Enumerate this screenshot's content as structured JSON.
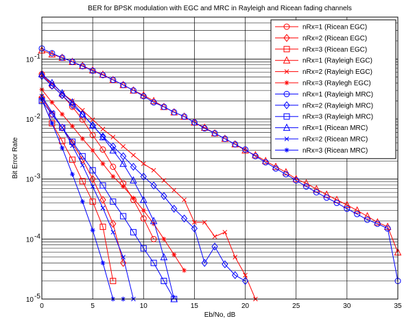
{
  "chart_data": {
    "type": "line",
    "title": "BER for BPSK modulation with EGC and MRC in Rayleigh and Ricean fading channels",
    "xlabel": "Eb/No, dB",
    "ylabel": "Bit Error Rate",
    "xlim": [
      0,
      35
    ],
    "ylim": [
      1e-05,
      0.5
    ],
    "yscale": "log",
    "grid": true,
    "legend_position": "top-right",
    "x_ticks": [
      "0",
      "5",
      "10",
      "15",
      "20",
      "25",
      "30",
      "35"
    ],
    "y_ticks": [
      {
        "value": 1e-05,
        "base": "10",
        "exp": "-5"
      },
      {
        "value": 0.0001,
        "base": "10",
        "exp": "-4"
      },
      {
        "value": 0.001,
        "base": "10",
        "exp": "-3"
      },
      {
        "value": 0.01,
        "base": "10",
        "exp": "-2"
      },
      {
        "value": 0.1,
        "base": "10",
        "exp": "-1"
      }
    ],
    "series": [
      {
        "name": "nRx=1 (Ricean EGC)",
        "color": "#ff0000",
        "marker": "circle",
        "x": [
          0,
          1,
          2,
          3,
          4,
          5,
          6,
          7,
          8,
          9,
          10,
          11
        ],
        "y": [
          0.056,
          0.036,
          0.025,
          0.016,
          0.0098,
          0.0054,
          0.0031,
          0.0016,
          0.00085,
          0.00045,
          0.00022,
          0.0001
        ]
      },
      {
        "name": "nRx=2 (Ricean EGC)",
        "color": "#ff0000",
        "marker": "diamond",
        "x": [
          0,
          1,
          2,
          3,
          4,
          5,
          6,
          7,
          8
        ],
        "y": [
          0.023,
          0.012,
          0.0072,
          0.004,
          0.0021,
          0.001,
          0.00045,
          0.00018,
          4e-05
        ]
      },
      {
        "name": "nRx=3 (Ricean EGC)",
        "color": "#ff0000",
        "marker": "square",
        "x": [
          0,
          1,
          2,
          3,
          4,
          5,
          6,
          7
        ],
        "y": [
          0.021,
          0.0085,
          0.0043,
          0.0021,
          0.00092,
          0.00042,
          0.00016,
          2e-05
        ]
      },
      {
        "name": "nRx=1 (Rayleigh EGC)",
        "color": "#ff0000",
        "marker": "triangle",
        "x": [
          0,
          1,
          2,
          3,
          4,
          5,
          6,
          7,
          8,
          9,
          10,
          11,
          12,
          13,
          14,
          15,
          16,
          17,
          18,
          19,
          20,
          21,
          22,
          23,
          24,
          25,
          26,
          27,
          28,
          29,
          30,
          31,
          32,
          33,
          34,
          35
        ],
        "y": [
          0.14,
          0.12,
          0.105,
          0.09,
          0.077,
          0.065,
          0.055,
          0.045,
          0.037,
          0.03,
          0.025,
          0.02,
          0.016,
          0.013,
          0.011,
          0.0088,
          0.0072,
          0.0058,
          0.0047,
          0.0038,
          0.003,
          0.0025,
          0.002,
          0.0016,
          0.0013,
          0.001,
          0.00085,
          0.00068,
          0.00055,
          0.00045,
          0.00037,
          0.0003,
          0.00024,
          0.00019,
          0.00016,
          6e-05
        ]
      },
      {
        "name": "nRx=2 (Rayleigh EGC)",
        "color": "#ff0000",
        "marker": "x",
        "x": [
          0,
          1,
          2,
          3,
          4,
          5,
          6,
          7,
          8,
          9,
          10,
          11,
          12,
          13,
          14,
          15,
          16,
          17,
          18,
          19,
          20,
          21
        ],
        "y": [
          0.053,
          0.039,
          0.027,
          0.02,
          0.014,
          0.0098,
          0.0068,
          0.005,
          0.0035,
          0.0025,
          0.0018,
          0.0014,
          0.00095,
          0.00065,
          0.00045,
          0.00019,
          0.00019,
          0.00011,
          0.00013,
          5e-05,
          2.5e-05,
          1e-05
        ]
      },
      {
        "name": "nRx=3 (Raylegh EGC)",
        "color": "#ff0000",
        "marker": "star",
        "x": [
          0,
          1,
          2,
          3,
          4,
          5,
          6,
          7,
          8,
          9,
          10,
          11,
          12,
          13,
          14
        ],
        "y": [
          0.031,
          0.019,
          0.012,
          0.0076,
          0.0047,
          0.003,
          0.0018,
          0.0011,
          0.00075,
          0.00048,
          0.0003,
          0.00018,
          0.0001,
          5.5e-05,
          3e-05
        ]
      },
      {
        "name": "nRx=1 (Rayleigh MRC)",
        "color": "#0000ff",
        "marker": "circle",
        "x": [
          0,
          1,
          2,
          3,
          4,
          5,
          6,
          7,
          8,
          9,
          10,
          11,
          12,
          13,
          14,
          15,
          16,
          17,
          18,
          19,
          20,
          21,
          22,
          23,
          24,
          25,
          26,
          27,
          28,
          29,
          30,
          31,
          32,
          33,
          34,
          35
        ],
        "y": [
          0.15,
          0.125,
          0.105,
          0.09,
          0.076,
          0.064,
          0.054,
          0.045,
          0.037,
          0.03,
          0.024,
          0.019,
          0.016,
          0.013,
          0.011,
          0.0088,
          0.007,
          0.0058,
          0.0047,
          0.0038,
          0.0031,
          0.0024,
          0.0019,
          0.0015,
          0.0012,
          0.00095,
          0.00075,
          0.0006,
          0.00049,
          0.0004,
          0.00032,
          0.00026,
          0.00021,
          0.00018,
          0.00015,
          2e-05
        ]
      },
      {
        "name": "nRx=2 (Rayleigh MRC)",
        "color": "#0000ff",
        "marker": "diamond",
        "x": [
          0,
          1,
          2,
          3,
          4,
          5,
          6,
          7,
          8,
          9,
          10,
          11,
          12,
          13,
          14,
          15,
          16,
          17,
          18,
          19,
          20
        ],
        "y": [
          0.052,
          0.036,
          0.025,
          0.017,
          0.012,
          0.0078,
          0.0051,
          0.0035,
          0.0024,
          0.0016,
          0.0011,
          0.00078,
          0.00052,
          0.00032,
          0.00022,
          0.00015,
          4e-05,
          7.5e-05,
          3.8e-05,
          2.5e-05,
          2e-05
        ]
      },
      {
        "name": "nRx=3 (Rayleigh MRC)",
        "color": "#0000ff",
        "marker": "square",
        "x": [
          0,
          1,
          2,
          3,
          4,
          5,
          6,
          7,
          8,
          9,
          10,
          11,
          12,
          13
        ],
        "y": [
          0.02,
          0.012,
          0.0072,
          0.0042,
          0.0024,
          0.0014,
          0.00078,
          0.00042,
          0.00024,
          0.00013,
          7e-05,
          4e-05,
          2e-05,
          1e-05
        ]
      },
      {
        "name": "nRx=1 (Ricean MRC)",
        "color": "#0000ff",
        "marker": "triangle",
        "x": [
          0,
          1,
          2,
          3,
          4,
          5,
          6,
          7,
          8,
          9,
          10,
          11,
          12,
          13
        ],
        "y": [
          0.056,
          0.04,
          0.027,
          0.019,
          0.012,
          0.0079,
          0.005,
          0.003,
          0.0018,
          0.00095,
          0.00045,
          0.0002,
          5e-05,
          1e-05
        ]
      },
      {
        "name": "nRx=2 (Ricean MRC)",
        "color": "#0000ff",
        "marker": "x",
        "x": [
          0,
          1,
          2,
          3,
          4,
          5,
          6,
          7,
          8,
          9
        ],
        "y": [
          0.024,
          0.013,
          0.0072,
          0.0036,
          0.0017,
          0.00075,
          0.00033,
          0.00013,
          5e-05,
          1e-05
        ]
      },
      {
        "name": "nRx=3 (Ricean MRC)",
        "color": "#0000ff",
        "marker": "star",
        "x": [
          0,
          1,
          2,
          3,
          4,
          5,
          6,
          7,
          8
        ],
        "y": [
          0.021,
          0.0085,
          0.0033,
          0.0012,
          0.00042,
          0.00014,
          4e-05,
          1e-05,
          1e-05
        ]
      }
    ]
  }
}
